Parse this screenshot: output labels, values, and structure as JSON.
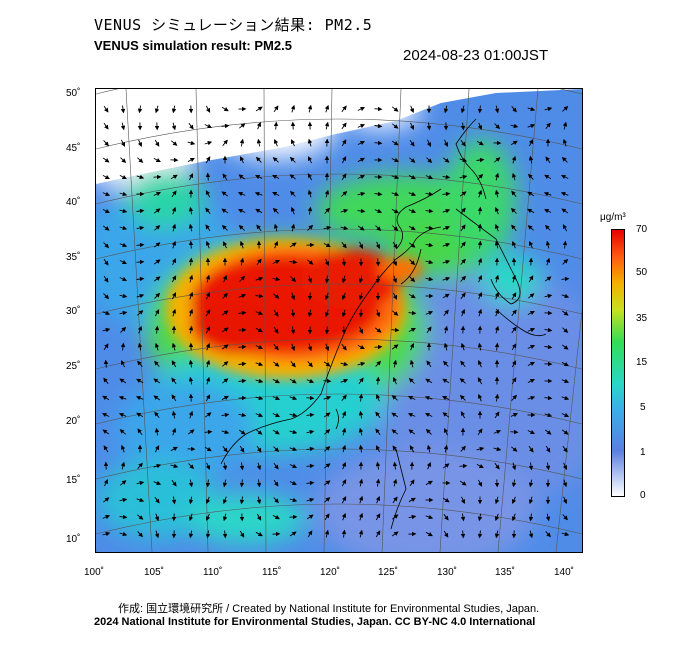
{
  "header": {
    "title_jp": "VENUS シミュレーション結果: PM2.5",
    "title_en": "VENUS simulation result: PM2.5",
    "timestamp": "2024-08-23 01:00JST"
  },
  "map": {
    "lat_labels": [
      "50˚",
      "45˚",
      "40˚",
      "35˚",
      "30˚",
      "25˚",
      "20˚",
      "15˚",
      "10˚"
    ],
    "lon_labels": [
      "100˚",
      "105˚",
      "110˚",
      "115˚",
      "120˚",
      "125˚",
      "130˚",
      "135˚",
      "140˚"
    ],
    "field": "PM2.5 concentration with wind vectors",
    "colors": {
      "very_high": "#e80000",
      "high": "#ff5a10",
      "moderate": "#f4b000",
      "mid": "#33dd55",
      "low": "#2ad7c8",
      "very_low": "#3ab0e8",
      "minimal": "#5a7fe0"
    }
  },
  "colorbar": {
    "unit": "μg/m³",
    "ticks": [
      "70",
      "50",
      "35",
      "15",
      "5",
      "1",
      "0"
    ]
  },
  "credits": {
    "line1": "作成: 国立環境研究所 / Created by National Institute for Environmental Studies, Japan.",
    "line2": "2024 National Institute for Environmental Studies, Japan. CC BY-NC 4.0 International"
  }
}
